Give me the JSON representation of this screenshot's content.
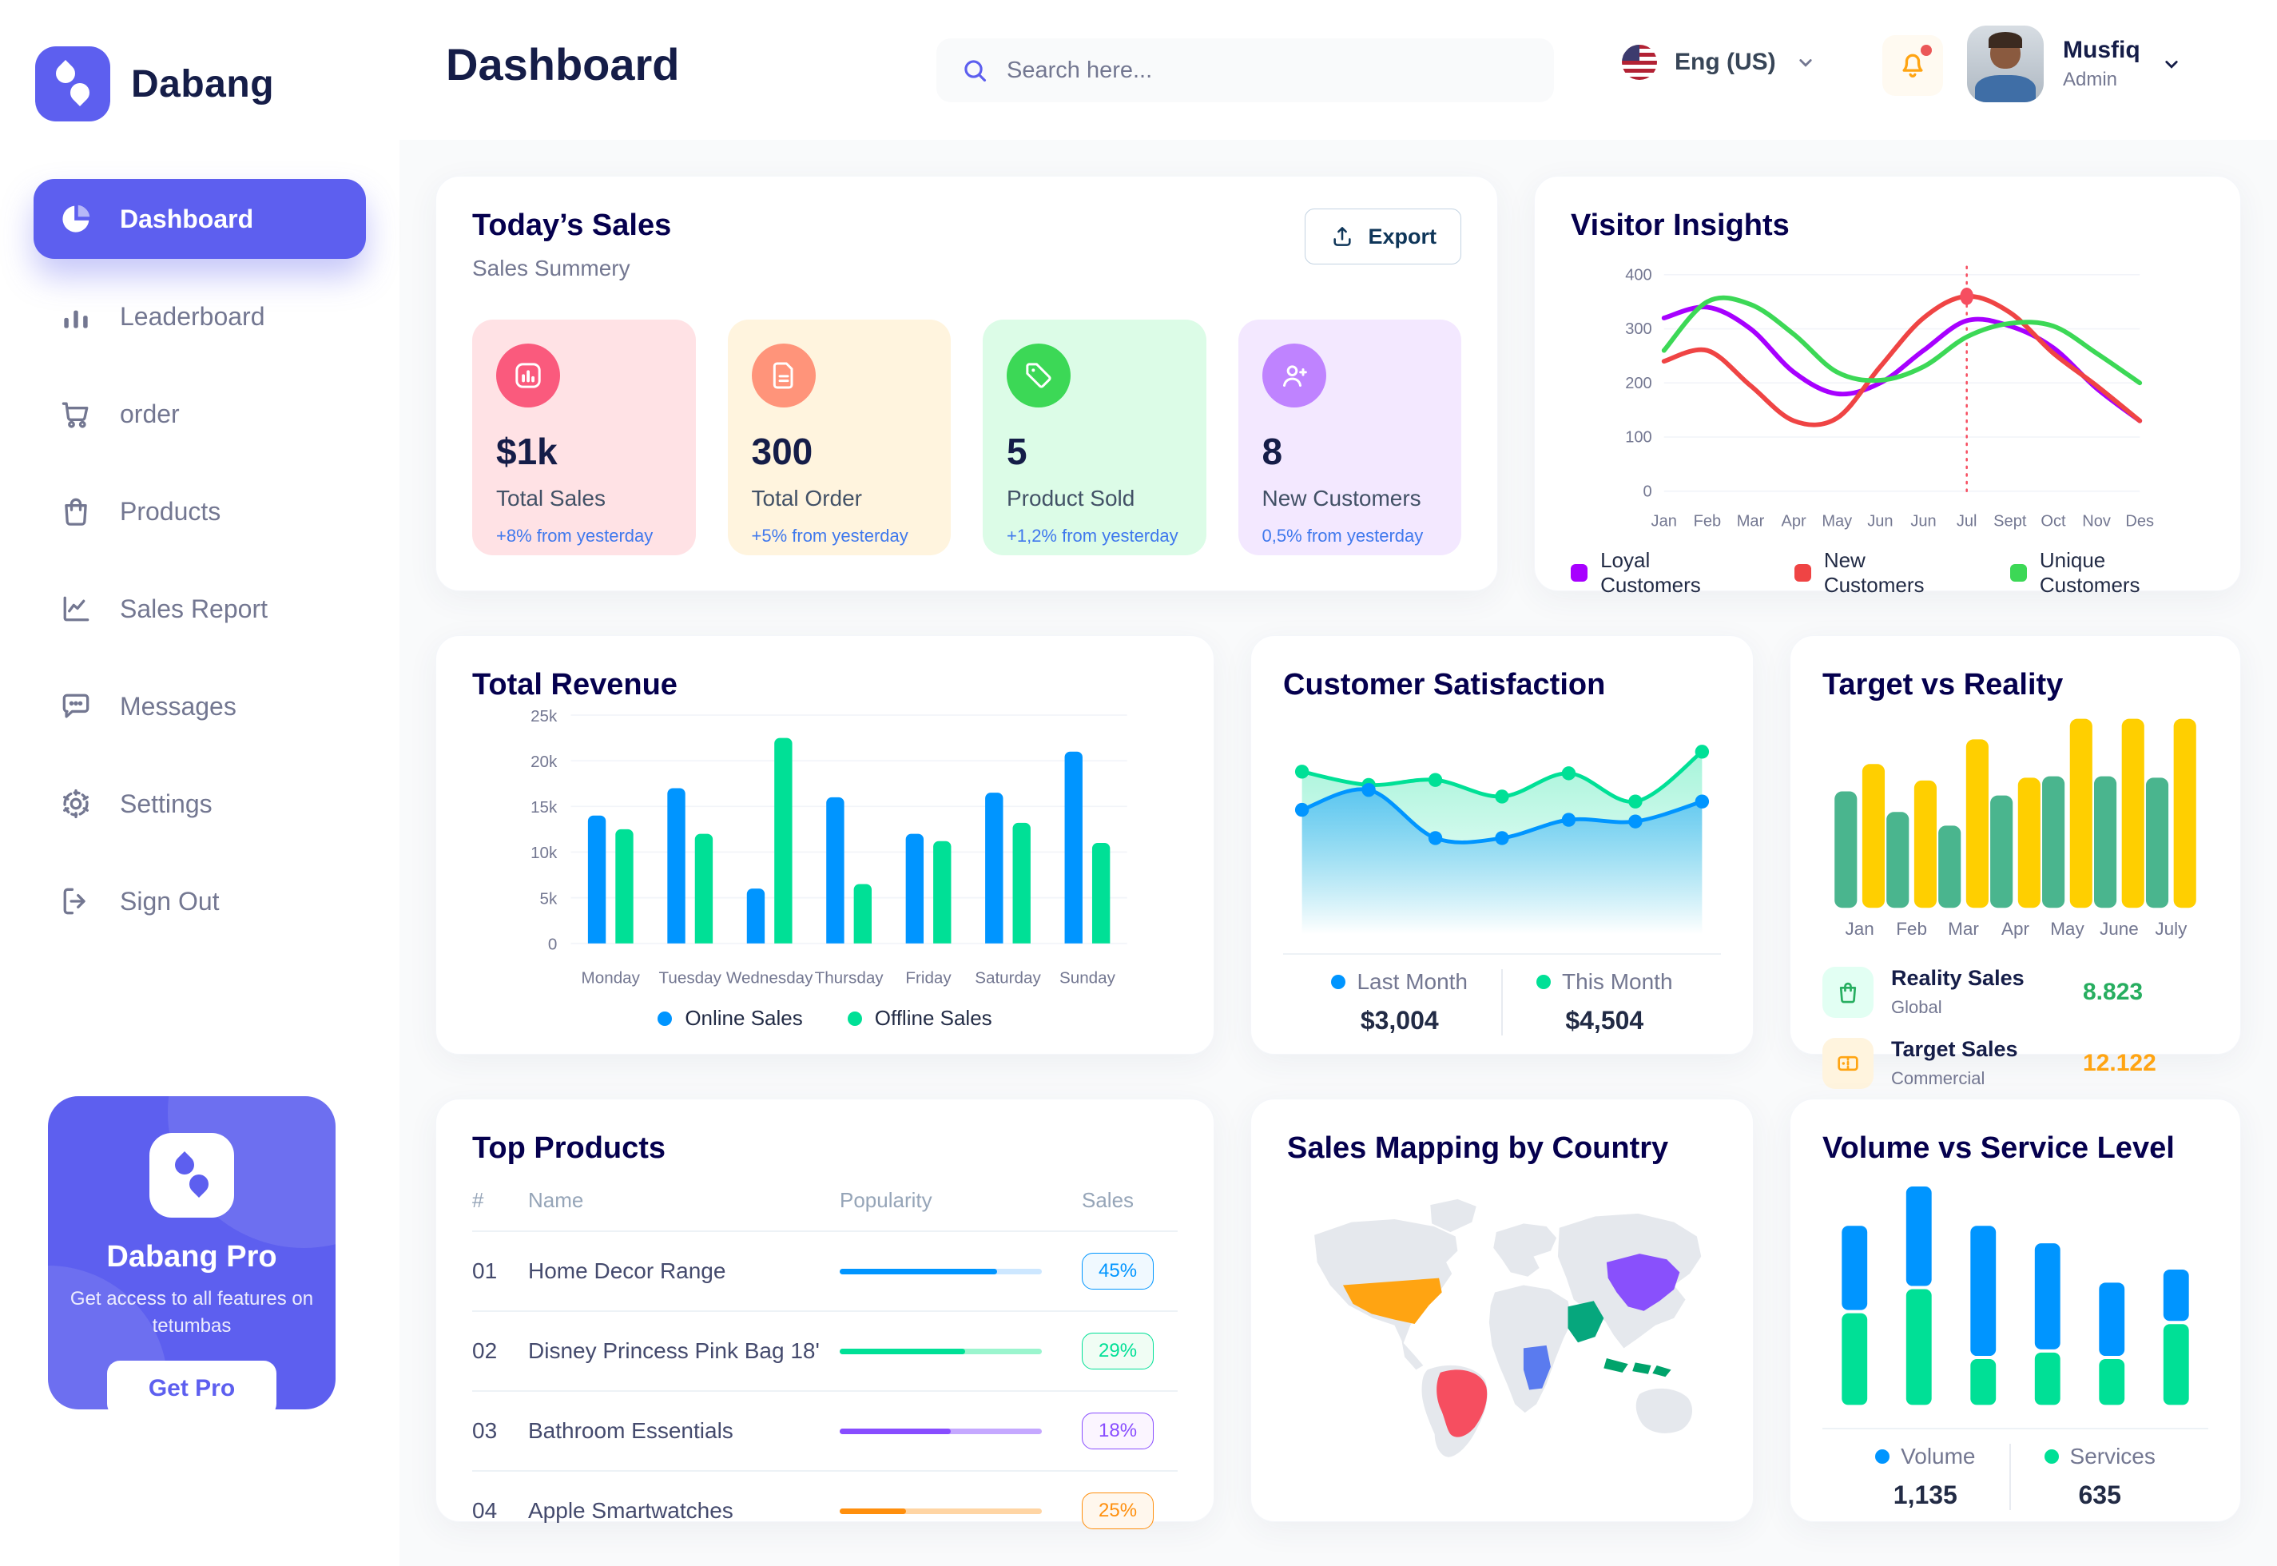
{
  "brand": {
    "name": "Dabang",
    "logo_icon": "dabang-logo"
  },
  "header": {
    "page_title": "Dashboard",
    "search": {
      "placeholder": "Search here...",
      "icon": "search-icon"
    },
    "language": {
      "label": "Eng (US)",
      "flag_icon": "us-flag-icon"
    },
    "notifications": {
      "icon": "bell-icon",
      "has_unread": true
    },
    "user": {
      "name": "Musfiq",
      "role": "Admin"
    }
  },
  "sidebar": {
    "items": [
      {
        "label": "Dashboard",
        "icon": "pie-chart-icon",
        "active": true
      },
      {
        "label": "Leaderboard",
        "icon": "bar-chart-icon",
        "active": false
      },
      {
        "label": "order",
        "icon": "cart-icon",
        "active": false
      },
      {
        "label": "Products",
        "icon": "bag-icon",
        "active": false
      },
      {
        "label": "Sales Report",
        "icon": "line-chart-icon",
        "active": false
      },
      {
        "label": "Messages",
        "icon": "message-icon",
        "active": false
      },
      {
        "label": "Settings",
        "icon": "gear-icon",
        "active": false
      },
      {
        "label": "Sign Out",
        "icon": "sign-out-icon",
        "active": false
      }
    ],
    "promo": {
      "title": "Dabang Pro",
      "description": "Get access to all features on tetumbas",
      "button_label": "Get Pro"
    }
  },
  "today_sales": {
    "title": "Today’s Sales",
    "subtitle": "Sales Summery",
    "export_label": "Export",
    "export_icon": "export-icon",
    "delta_color": "#4079ED",
    "cards": [
      {
        "value": "$1k",
        "label": "Total Sales",
        "delta": "+8% from yesterday",
        "bg": "#FFE2E5",
        "icon_bg": "#FA5A7D",
        "icon": "sales-chart-icon"
      },
      {
        "value": "300",
        "label": "Total Order",
        "delta": "+5% from yesterday",
        "bg": "#FFF4DE",
        "icon_bg": "#FF947A",
        "icon": "order-file-icon"
      },
      {
        "value": "5",
        "label": "Product Sold",
        "delta": "+1,2% from yesterday",
        "bg": "#DCFCE7",
        "icon_bg": "#3CD856",
        "icon": "tag-icon"
      },
      {
        "value": "8",
        "label": "New Customers",
        "delta": "0,5% from yesterday",
        "bg": "#F3E8FF",
        "icon_bg": "#BF83FF",
        "icon": "new-customer-icon"
      }
    ]
  },
  "visitor_insights": {
    "title": "Visitor Insights",
    "chart_data": {
      "type": "line",
      "x": [
        "Jan",
        "Feb",
        "Mar",
        "Apr",
        "May",
        "Jun",
        "Jun",
        "Jul",
        "Sept",
        "Oct",
        "Nov",
        "Des"
      ],
      "ylim": [
        0,
        400
      ],
      "yticks": [
        0,
        100,
        200,
        300,
        400
      ],
      "series": [
        {
          "name": "Loyal Customers",
          "color": "#A700FF",
          "values": [
            320,
            340,
            300,
            220,
            180,
            200,
            260,
            315,
            305,
            265,
            190,
            130
          ]
        },
        {
          "name": "New Customers",
          "color": "#EF4444",
          "values": [
            240,
            260,
            195,
            130,
            135,
            230,
            320,
            360,
            330,
            255,
            195,
            130
          ]
        },
        {
          "name": "Unique Customers",
          "color": "#3CD856",
          "values": [
            260,
            350,
            345,
            290,
            220,
            205,
            230,
            285,
            310,
            305,
            255,
            200
          ]
        }
      ],
      "highlight": {
        "x_index": 7,
        "series": "New Customers",
        "value": 360
      }
    }
  },
  "total_revenue": {
    "title": "Total Revenue",
    "chart_data": {
      "type": "bar",
      "categories": [
        "Monday",
        "Tuesday",
        "Wednesday",
        "Thursday",
        "Friday",
        "Saturday",
        "Sunday"
      ],
      "ylim": [
        0,
        25000
      ],
      "ytick_values": [
        0,
        5000,
        10000,
        15000,
        20000,
        25000
      ],
      "ytick_labels": [
        "0",
        "5k",
        "10k",
        "15k",
        "20k",
        "25k"
      ],
      "series": [
        {
          "name": "Online Sales",
          "color": "#0095FF",
          "values": [
            14000,
            17000,
            6000,
            16000,
            12000,
            16500,
            21000
          ]
        },
        {
          "name": "Offline Sales",
          "color": "#00E096",
          "values": [
            12500,
            12000,
            22500,
            6500,
            11200,
            13200,
            11000
          ]
        }
      ]
    }
  },
  "customer_satisfaction": {
    "title": "Customer Satisfaction",
    "chart_data": {
      "type": "area",
      "ylim": [
        0,
        100
      ],
      "series": [
        {
          "name": "Last Month",
          "color": "#0095FF",
          "total": "$3,004",
          "values": [
            55,
            67,
            38,
            38,
            49,
            48,
            60
          ]
        },
        {
          "name": "This Month",
          "color": "#00E096",
          "total": "$4,504",
          "values": [
            78,
            70,
            73,
            63,
            77,
            60,
            90
          ]
        }
      ]
    }
  },
  "target_vs_reality": {
    "title": "Target vs Reality",
    "chart_data": {
      "type": "bar",
      "categories": [
        "Jan",
        "Feb",
        "Mar",
        "Apr",
        "May",
        "June",
        "July"
      ],
      "ylim": [
        0,
        14
      ],
      "series": [
        {
          "name": "Reality Sales",
          "color": "#4AB58E",
          "values": [
            8.5,
            7,
            6,
            8.2,
            9.6,
            9.6,
            9.5
          ]
        },
        {
          "name": "Target Sales",
          "color": "#FFCF00",
          "values": [
            10.5,
            9.3,
            12.3,
            9.5,
            13.8,
            13.8,
            13.8
          ]
        }
      ]
    },
    "legend": [
      {
        "name": "Reality Sales",
        "sub": "Global",
        "value": "8.823",
        "value_color": "#27AE60",
        "icon": "shopping-bag-icon",
        "icon_bg": "#E2FFF3"
      },
      {
        "name": "Target Sales",
        "sub": "Commercial",
        "value": "12.122",
        "value_color": "#FFA412",
        "icon": "ticket-icon",
        "icon_bg": "#FFF4DE"
      }
    ]
  },
  "top_products": {
    "title": "Top Products",
    "columns": [
      "#",
      "Name",
      "Popularity",
      "Sales"
    ],
    "rows": [
      {
        "num": "01",
        "name": "Home Decor Range",
        "popularity_pct": 78,
        "sales": "45%",
        "color": "#0095FF",
        "track": "#CDE7FF",
        "badge_bg": "#F0F9FF"
      },
      {
        "num": "02",
        "name": "Disney Princess Pink Bag 18'",
        "popularity_pct": 62,
        "sales": "29%",
        "color": "#00E096",
        "track": "#9BF5CE",
        "badge_bg": "#F0FDF4"
      },
      {
        "num": "03",
        "name": "Bathroom Essentials",
        "popularity_pct": 55,
        "sales": "18%",
        "color": "#884DFF",
        "track": "#C5A8FF",
        "badge_bg": "#FBF5FF"
      },
      {
        "num": "04",
        "name": "Apple Smartwatches",
        "popularity_pct": 33,
        "sales": "25%",
        "color": "#FF8F0D",
        "track": "#FFD5A4",
        "badge_bg": "#FFF7ED"
      }
    ]
  },
  "sales_mapping": {
    "title": "Sales Mapping by Country",
    "highlighted": [
      {
        "country": "United States",
        "color": "#FFA412"
      },
      {
        "country": "Brazil",
        "color": "#F64E60"
      },
      {
        "country": "Saudi Arabia",
        "color": "#06A77D"
      },
      {
        "country": "DR Congo",
        "color": "#5A7BEF"
      },
      {
        "country": "China",
        "color": "#8950FC"
      },
      {
        "country": "Indonesia",
        "color": "#00A36B"
      }
    ]
  },
  "volume_service": {
    "title": "Volume vs Service Level",
    "chart_data": {
      "type": "bar",
      "stacked": true,
      "series": [
        {
          "name": "Volume",
          "color": "#0095FF",
          "total": "1,135",
          "values": [
            40,
            47,
            61,
            50,
            35,
            25
          ]
        },
        {
          "name": "Services",
          "color": "#00E096",
          "total": "635",
          "values": [
            42,
            53,
            21,
            24,
            21,
            37
          ]
        }
      ]
    }
  }
}
